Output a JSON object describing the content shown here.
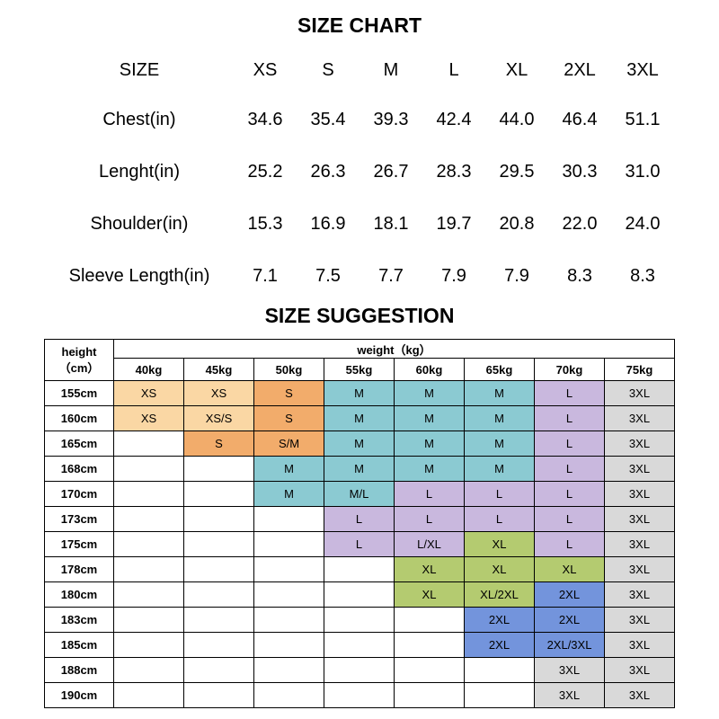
{
  "chart_data": [
    {
      "type": "table",
      "title": "SIZE CHART",
      "columns": [
        "SIZE",
        "XS",
        "S",
        "M",
        "L",
        "XL",
        "2XL",
        "3XL"
      ],
      "rows": [
        [
          "Chest(in)",
          "34.6",
          "35.4",
          "39.3",
          "42.4",
          "44.0",
          "46.4",
          "51.1"
        ],
        [
          "Lenght(in)",
          "25.2",
          "26.3",
          "26.7",
          "28.3",
          "29.5",
          "30.3",
          "31.0"
        ],
        [
          "Shoulder(in)",
          "15.3",
          "16.9",
          "18.1",
          "19.7",
          "20.8",
          "22.0",
          "24.0"
        ],
        [
          "Sleeve Length(in)",
          "7.1",
          "7.5",
          "7.7",
          "7.9",
          "7.9",
          "8.3",
          "8.3"
        ]
      ]
    },
    {
      "type": "table",
      "title": "SIZE SUGGESTION",
      "corner_header": "height\n（cm）",
      "group_header": "weight（kg）",
      "columns": [
        "40kg",
        "45kg",
        "50kg",
        "55kg",
        "60kg",
        "65kg",
        "70kg",
        "75kg"
      ],
      "legend_colors": {
        "XS": "#FAD7A4",
        "S": "#F2AC6B",
        "M": "#8BCAD2",
        "L": "#C9B8DE",
        "XL": "#B4CB70",
        "2XL": "#7394DC",
        "3XL": "#D9D9D9"
      },
      "rows": [
        {
          "height": "155cm",
          "cells": [
            "XS",
            "XS",
            "S",
            "M",
            "M",
            "M",
            "L",
            "3XL"
          ]
        },
        {
          "height": "160cm",
          "cells": [
            "XS",
            "XS/S",
            "S",
            "M",
            "M",
            "M",
            "L",
            "3XL"
          ]
        },
        {
          "height": "165cm",
          "cells": [
            "",
            "S",
            "S/M",
            "M",
            "M",
            "M",
            "L",
            "3XL"
          ]
        },
        {
          "height": "168cm",
          "cells": [
            "",
            "",
            "M",
            "M",
            "M",
            "M",
            "L",
            "3XL"
          ]
        },
        {
          "height": "170cm",
          "cells": [
            "",
            "",
            "M",
            "M/L",
            "L",
            "L",
            "L",
            "3XL"
          ]
        },
        {
          "height": "173cm",
          "cells": [
            "",
            "",
            "",
            "L",
            "L",
            "L",
            "L",
            "3XL"
          ]
        },
        {
          "height": "175cm",
          "cells": [
            "",
            "",
            "",
            "L",
            "L/XL",
            "XL",
            "L",
            "3XL"
          ]
        },
        {
          "height": "178cm",
          "cells": [
            "",
            "",
            "",
            "",
            "XL",
            "XL",
            "XL",
            "3XL"
          ]
        },
        {
          "height": "180cm",
          "cells": [
            "",
            "",
            "",
            "",
            "XL",
            "XL/2XL",
            "2XL",
            "3XL"
          ]
        },
        {
          "height": "183cm",
          "cells": [
            "",
            "",
            "",
            "",
            "",
            "2XL",
            "2XL",
            "3XL"
          ]
        },
        {
          "height": "185cm",
          "cells": [
            "",
            "",
            "",
            "",
            "",
            "2XL",
            "2XL/3XL",
            "3XL"
          ]
        },
        {
          "height": "188cm",
          "cells": [
            "",
            "",
            "",
            "",
            "",
            "",
            "3XL",
            "3XL"
          ]
        },
        {
          "height": "190cm",
          "cells": [
            "",
            "",
            "",
            "",
            "",
            "",
            "3XL",
            "3XL"
          ]
        }
      ]
    }
  ]
}
